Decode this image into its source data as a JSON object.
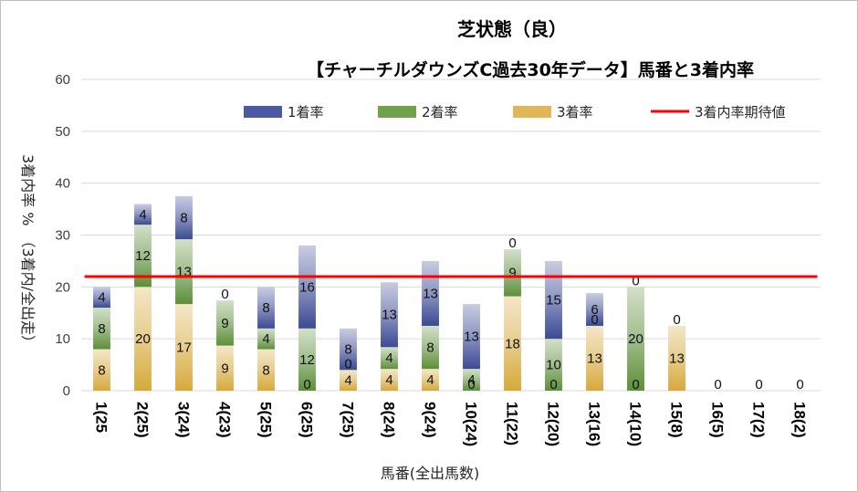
{
  "chart_data": {
    "type": "bar",
    "stacked": true,
    "title": "芝状態（良）",
    "subtitle": "【チャーチルダウンズC過去30年データ】馬番と3着内率",
    "xlabel": "馬番(全出馬数)",
    "ylabel": "3着内率 %　（3着内/全出走）",
    "ylim": [
      0,
      60
    ],
    "yticks": [
      "0",
      "10",
      "20",
      "30",
      "40",
      "50",
      "60"
    ],
    "grid": true,
    "legend_position": "top",
    "categories": [
      "1(25",
      "2(25)",
      "3(24)",
      "4(23)",
      "5(25)",
      "6(25)",
      "7(25)",
      "8(24)",
      "9(24)",
      "10(24)",
      "11(22)",
      "12(20)",
      "13(16)",
      "14(10)",
      "15(8)",
      "16(5)",
      "17(2)",
      "18(2)"
    ],
    "series": [
      {
        "name": "1着率",
        "color": "#3b4a93",
        "values": [
          4,
          4,
          8.3,
          0,
          8,
          16,
          8,
          12.5,
          12.5,
          12.5,
          0,
          15,
          6.3,
          0,
          0,
          0,
          0,
          0
        ],
        "labels": [
          "4",
          "4",
          "8",
          "0",
          "8",
          "16",
          "8",
          "13",
          "13",
          "13",
          "0",
          "15",
          "6",
          "0",
          "0",
          "",
          "",
          ""
        ]
      },
      {
        "name": "2着率",
        "color": "#5d8f3a",
        "values": [
          8,
          12,
          12.5,
          8.7,
          4,
          12,
          0,
          4.2,
          8.3,
          4.2,
          9.1,
          10,
          0,
          20,
          0,
          0,
          0,
          0
        ],
        "labels": [
          "8",
          "12",
          "13",
          "9",
          "4",
          "12",
          "0",
          "4",
          "8",
          "4",
          "9",
          "10",
          "0",
          "20",
          "",
          "",
          "",
          ""
        ]
      },
      {
        "name": "3着率",
        "color": "#d6a93a",
        "values": [
          8,
          20,
          16.7,
          8.7,
          8,
          0,
          4,
          4.2,
          4.2,
          0,
          18.2,
          0,
          12.5,
          0,
          12.5,
          0,
          0,
          0
        ],
        "labels": [
          "8",
          "20",
          "17",
          "9",
          "8",
          "0",
          "4",
          "4",
          "4",
          "0",
          "18",
          "0",
          "13",
          "0",
          "13",
          "0",
          "0",
          "0"
        ]
      }
    ],
    "reference_line": {
      "name": "3着内率期待値",
      "value": 22,
      "color": "#ff0000"
    }
  }
}
